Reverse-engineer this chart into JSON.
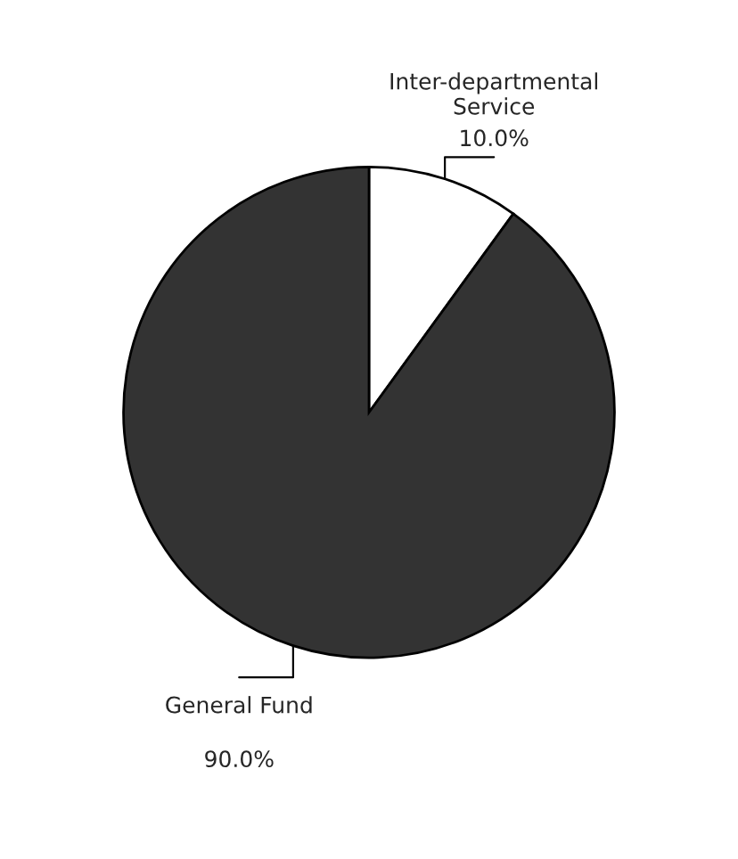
{
  "chart_data": {
    "type": "pie",
    "categories": [
      "Inter-departmental Service",
      "General Fund"
    ],
    "values": [
      10,
      90
    ],
    "colors": [
      "#ffffff",
      "#333333"
    ],
    "value_labels": [
      "10.0%",
      "90.0%"
    ]
  }
}
